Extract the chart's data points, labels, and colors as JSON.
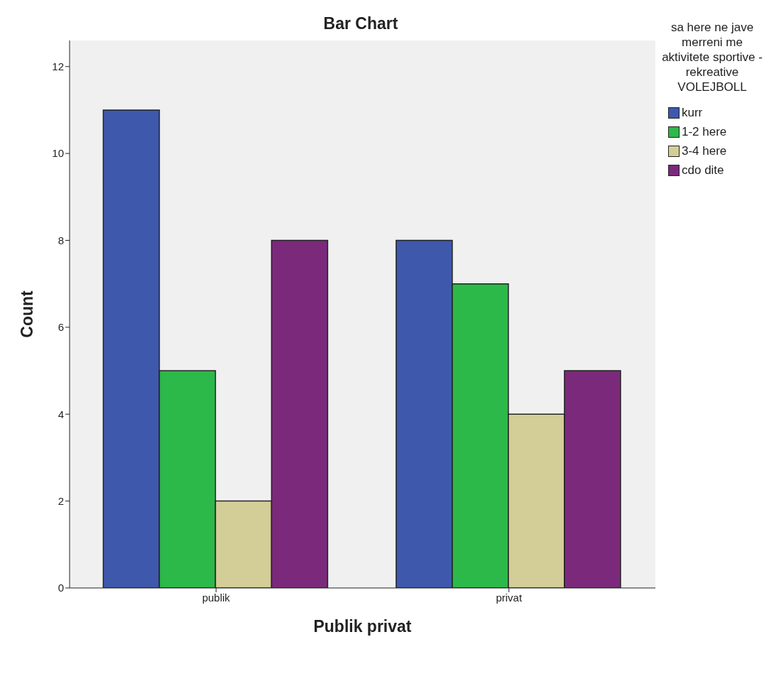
{
  "chart_data": {
    "type": "bar",
    "title": "Bar Chart",
    "xlabel": "Publik privat",
    "ylabel": "Count",
    "legend_title": "sa here ne jave merreni me aktivitete sportive - rekreative VOLEJBOLL",
    "categories": [
      "publik",
      "privat"
    ],
    "series": [
      {
        "name": "kurr",
        "color": "#3e58ac",
        "values": [
          11,
          8
        ]
      },
      {
        "name": "1-2 here",
        "color": "#2db84a",
        "values": [
          5,
          7
        ]
      },
      {
        "name": "3-4 here",
        "color": "#d3ce97",
        "values": [
          2,
          4
        ]
      },
      {
        "name": "cdo dite",
        "color": "#7b2a7b",
        "values": [
          8,
          5
        ]
      }
    ],
    "ylim": [
      0,
      12.6
    ],
    "yticks": [
      0,
      2,
      4,
      6,
      8,
      10,
      12
    ],
    "grid": false,
    "legend": "right"
  }
}
